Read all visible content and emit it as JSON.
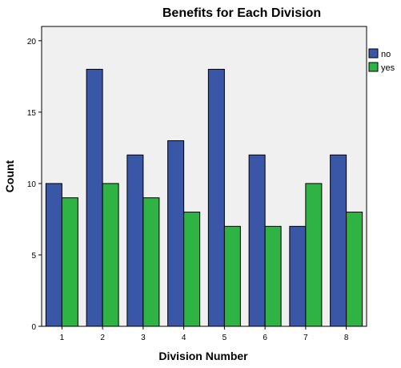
{
  "chart_data": {
    "type": "bar",
    "title": "Benefits for Each Division",
    "xlabel": "Division Number",
    "ylabel": "Count",
    "categories": [
      "1",
      "2",
      "3",
      "4",
      "5",
      "6",
      "7",
      "8"
    ],
    "series": [
      {
        "name": "no",
        "color": "#3a56a7",
        "values": [
          10,
          18,
          12,
          13,
          18,
          12,
          7,
          12
        ]
      },
      {
        "name": "yes",
        "color": "#2eb344",
        "values": [
          9,
          10,
          9,
          8,
          7,
          7,
          10,
          8
        ]
      }
    ],
    "ylim": [
      0,
      21
    ],
    "yticks": [
      0,
      5,
      10,
      15,
      20
    ],
    "grid": false,
    "plot_background": "#f0f0f0",
    "legend_position": "right"
  }
}
